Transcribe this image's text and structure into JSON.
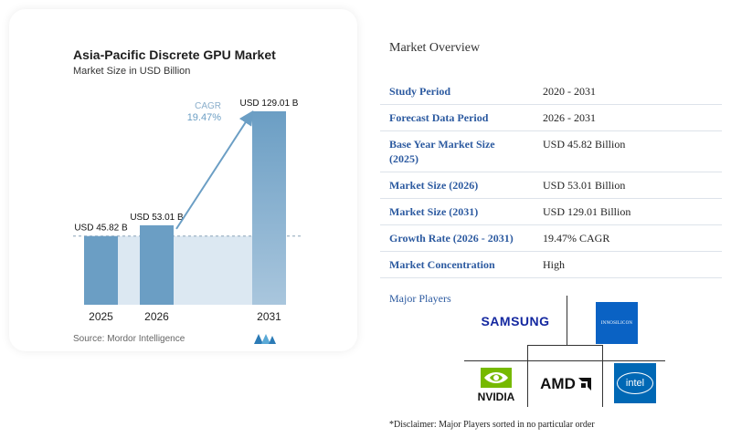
{
  "chart_data": {
    "type": "bar",
    "title": "Asia-Pacific Discrete GPU Market",
    "subtitle": "Market Size in USD Billion",
    "categories": [
      "2025",
      "2026",
      "2031"
    ],
    "values": [
      45.82,
      53.01,
      129.01
    ],
    "data_labels": [
      "USD 45.82 B",
      "USD 53.01 B",
      "USD 129.01 B"
    ],
    "cagr_label": "CAGR",
    "cagr_value": "19.47%",
    "source": "Source: Mordor Intelligence",
    "colors": {
      "bar": "#6b9ec4",
      "bar_light": "#a9c6dd",
      "area": "#dce8f2",
      "arrow": "#6b9ec4"
    }
  },
  "overview": {
    "title": "Market Overview",
    "rows": [
      {
        "label": "Study Period",
        "value": "2020 - 2031"
      },
      {
        "label": "Forecast Data Period",
        "value": "2026 - 2031"
      },
      {
        "label": "Base Year Market Size (2025)",
        "value": "USD 45.82 Billion"
      },
      {
        "label": "Market Size (2026)",
        "value": "USD 53.01 Billion"
      },
      {
        "label": "Market Size (2031)",
        "value": "USD 129.01 Billion"
      },
      {
        "label": "Growth Rate (2026 - 2031)",
        "value": "19.47% CAGR"
      },
      {
        "label": "Market Concentration",
        "value": "High"
      }
    ]
  },
  "players": {
    "title": "Major Players",
    "logos": [
      "SAMSUNG",
      "INNOSILICON",
      "NVIDIA",
      "AMD",
      "intel"
    ],
    "disclaimer": "*Disclaimer: Major Players sorted in no particular order"
  }
}
